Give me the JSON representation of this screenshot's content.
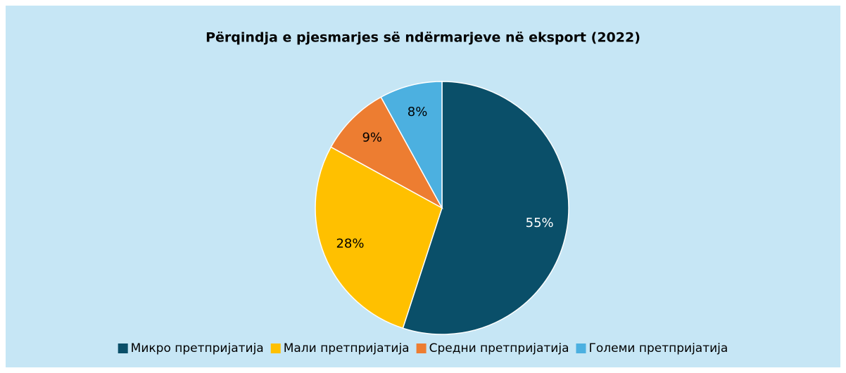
{
  "chart_data": {
    "type": "pie",
    "title": "Përqindja e pjesmarjes së ndërmarjeve në eksport (2022)",
    "categories": [
      "Микро претпријатија",
      "Мали претпријатија",
      "Средни претпријатија",
      "Големи претпријатија"
    ],
    "values": [
      55,
      28,
      9,
      8
    ],
    "value_labels": [
      "55%",
      "28%",
      "9%",
      "8%"
    ],
    "colors": [
      "#0a4f69",
      "#ffc000",
      "#ed7d31",
      "#4cb0e0"
    ],
    "legend": "bottom"
  }
}
